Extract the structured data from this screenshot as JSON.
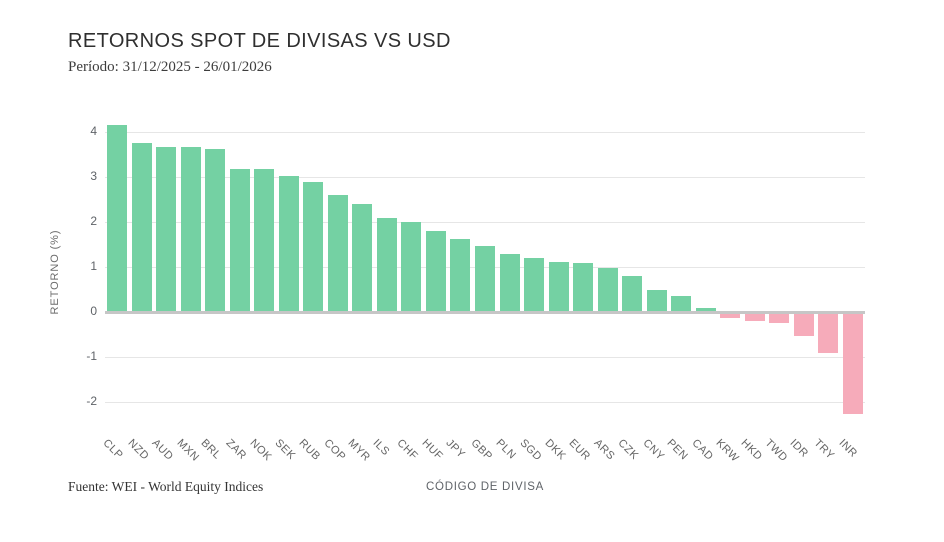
{
  "header": {
    "title": "RETORNOS SPOT DE DIVISAS VS USD",
    "subtitle": "Período: 31/12/2025 - 26/01/2026"
  },
  "footer": {
    "source": "Fuente: WEI - World Equity Indices"
  },
  "chart_data": {
    "type": "bar",
    "title": "RETORNOS SPOT DE DIVISAS VS USD",
    "subtitle": "Período: 31/12/2025 - 26/01/2026",
    "xlabel": "CÓDIGO DE DIVISA",
    "ylabel": "RETORNO (%)",
    "categories": [
      "CLP",
      "NZD",
      "AUD",
      "MXN",
      "BRL",
      "ZAR",
      "NOK",
      "SEK",
      "RUB",
      "COP",
      "MYR",
      "ILS",
      "CHF",
      "HUF",
      "JPY",
      "GBP",
      "PLN",
      "SGD",
      "DKK",
      "EUR",
      "ARS",
      "CZK",
      "CNY",
      "PEN",
      "CAD",
      "KRW",
      "HKD",
      "TWD",
      "IDR",
      "TRY",
      "INR"
    ],
    "values": [
      4.15,
      3.75,
      3.67,
      3.67,
      3.62,
      3.18,
      3.18,
      3.03,
      2.9,
      2.6,
      2.4,
      2.1,
      1.99,
      1.8,
      1.62,
      1.47,
      1.28,
      1.19,
      1.11,
      1.09,
      0.97,
      0.81,
      0.5,
      0.36,
      0.09,
      -0.13,
      -0.2,
      -0.25,
      -0.53,
      -0.91,
      -2.27
    ],
    "yticks": [
      4,
      3,
      2,
      1,
      0,
      -1,
      -2
    ],
    "ylim": [
      -2.5,
      4.35
    ],
    "grid": true,
    "legend": false,
    "bar_colors": {
      "positive": "#74d1a3",
      "negative": "#f6abba"
    },
    "axis_colors": {
      "gridline": "#e6e6e6",
      "zero_line": "#c6c6c6",
      "tick_text": "#5f6368",
      "axis_title_text": "#6d6d6d"
    }
  }
}
